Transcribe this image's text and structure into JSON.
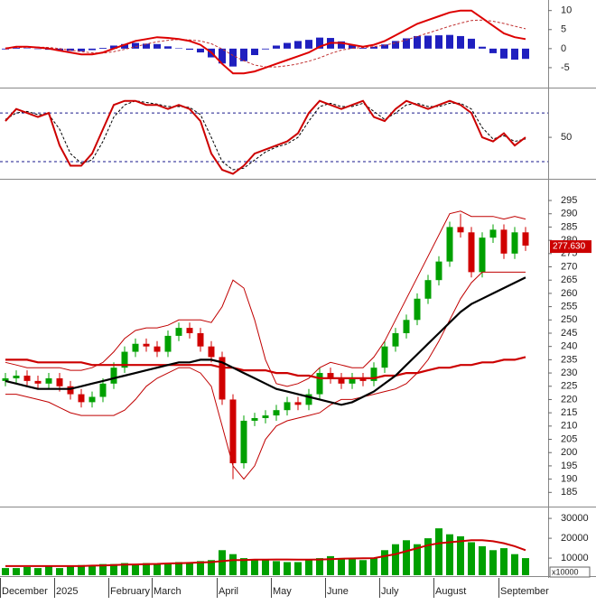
{
  "chart_data": [
    {
      "type": "line",
      "ylim": [
        -10,
        12.3
      ],
      "yticks": [
        10,
        5,
        0,
        -5
      ],
      "series": [
        {
          "style": "histogram",
          "color": "#1f1fbf",
          "values": [
            -0.2,
            0.2,
            0.1,
            -0.1,
            -0.3,
            -0.5,
            -0.6,
            -0.7,
            -0.4,
            0.2,
            0.8,
            1.2,
            1.5,
            1.3,
            1.2,
            0.6,
            0.1,
            -0.3,
            -1,
            -2.3,
            -3.9,
            -4.7,
            -3.3,
            -1.7,
            -0.2,
            0.8,
            1.5,
            2,
            2.3,
            2.9,
            2.8,
            1.9,
            0.9,
            0.2,
            0.5,
            1.1,
            2,
            2.7,
            3.3,
            3.4,
            3.5,
            3.6,
            3.3,
            2.6,
            0.5,
            -1.2,
            -2.6,
            -2.9,
            -2.7
          ]
        },
        {
          "style": "dashed",
          "color": "#c03030",
          "values": [
            0.2,
            0.3,
            0.4,
            0.4,
            0.3,
            0,
            -0.4,
            -0.8,
            -1.1,
            -1.2,
            -0.8,
            -0.2,
            0.5,
            1.2,
            1.8,
            2.2,
            2.4,
            2.3,
            2,
            1.3,
            -0.1,
            -1.8,
            -3.2,
            -4.3,
            -4.8,
            -4.8,
            -4.5,
            -4,
            -3.3,
            -2.4,
            -1.3,
            -0.4,
            0.1,
            0.3,
            0.5,
            0.9,
            1.5,
            2.3,
            3.2,
            4.1,
            5,
            5.9,
            6.7,
            7.4,
            7.5,
            7.2,
            6.6,
            5.9,
            5.2
          ]
        },
        {
          "style": "line",
          "color": "#dd0000",
          "values": [
            0,
            0.5,
            0.5,
            0.3,
            0,
            -0.5,
            -1,
            -1.5,
            -1.5,
            -1,
            0,
            1,
            2,
            2.5,
            3,
            2.8,
            2.5,
            2,
            1,
            -1,
            -4,
            -6.5,
            -6.5,
            -6,
            -5,
            -4,
            -3,
            -2,
            -1,
            0.5,
            1.5,
            1.5,
            1,
            0.5,
            1,
            2,
            3.5,
            5,
            6.5,
            7.5,
            8.5,
            9.5,
            10,
            10,
            8,
            6,
            4,
            3,
            2.5
          ]
        }
      ]
    },
    {
      "type": "line",
      "ylim": [
        0,
        108
      ],
      "yticks": [
        50
      ],
      "hlines": [
        80,
        20
      ],
      "series": [
        {
          "style": "dashed",
          "color": "#000000",
          "values": [
            72,
            80,
            82,
            78,
            78,
            60,
            30,
            18,
            22,
            45,
            75,
            90,
            95,
            93,
            91,
            88,
            88,
            87,
            78,
            50,
            20,
            10,
            12,
            22,
            32,
            38,
            42,
            50,
            70,
            88,
            92,
            88,
            88,
            92,
            82,
            72,
            80,
            90,
            92,
            88,
            88,
            92,
            92,
            85,
            62,
            48,
            52,
            45,
            48
          ]
        },
        {
          "style": "line",
          "color": "#cc0000",
          "values": [
            70,
            85,
            80,
            75,
            80,
            40,
            15,
            15,
            30,
            60,
            90,
            95,
            95,
            90,
            90,
            85,
            90,
            85,
            70,
            30,
            10,
            5,
            15,
            30,
            35,
            40,
            45,
            55,
            80,
            95,
            90,
            85,
            90,
            95,
            75,
            70,
            85,
            95,
            90,
            85,
            90,
            95,
            90,
            80,
            50,
            45,
            55,
            40,
            50
          ]
        }
      ]
    },
    {
      "type": "candlestick",
      "ylim": [
        180,
        302.5
      ],
      "yticks": [
        185,
        190,
        195,
        200,
        205,
        210,
        215,
        220,
        225,
        230,
        235,
        240,
        245,
        250,
        255,
        260,
        265,
        270,
        275,
        280,
        285,
        290,
        295
      ],
      "up_color": "#00a000",
      "down_color": "#d00000",
      "open": [
        227,
        228,
        229,
        227,
        226,
        228,
        225,
        222,
        219,
        221,
        226,
        232,
        238,
        241,
        240,
        238,
        244,
        247,
        245,
        240,
        236,
        220,
        196,
        212,
        213,
        214,
        216,
        219,
        218,
        222,
        230,
        228,
        226,
        228,
        227,
        232,
        240,
        245,
        250,
        258,
        265,
        272,
        285,
        283,
        268,
        281,
        284,
        275,
        283
      ],
      "high": [
        230,
        231,
        231,
        229,
        230,
        230,
        227,
        224,
        223,
        228,
        234,
        240,
        243,
        243,
        242,
        246,
        249,
        249,
        247,
        242,
        238,
        222,
        214,
        215,
        216,
        218,
        221,
        221,
        224,
        232,
        232,
        230,
        230,
        230,
        234,
        242,
        247,
        252,
        260,
        267,
        274,
        287,
        290,
        285,
        283,
        286,
        286,
        285,
        285
      ],
      "low": [
        225,
        226,
        225,
        224,
        224,
        223,
        220,
        217,
        217,
        219,
        224,
        230,
        236,
        238,
        236,
        236,
        242,
        243,
        238,
        234,
        218,
        190,
        194,
        210,
        211,
        212,
        214,
        216,
        216,
        220,
        226,
        224,
        224,
        225,
        225,
        230,
        238,
        243,
        248,
        256,
        263,
        270,
        281,
        266,
        266,
        279,
        273,
        273,
        276
      ],
      "close": [
        228,
        229,
        227,
        226,
        228,
        225,
        222,
        219,
        221,
        226,
        232,
        238,
        241,
        240,
        238,
        244,
        247,
        245,
        240,
        236,
        220,
        196,
        212,
        213,
        214,
        216,
        219,
        218,
        222,
        230,
        228,
        226,
        228,
        227,
        232,
        240,
        245,
        250,
        258,
        265,
        272,
        285,
        283,
        268,
        281,
        284,
        275,
        283,
        278
      ],
      "series": [
        {
          "style": "thin",
          "color": "#c00000",
          "values": [
            234,
            233,
            232,
            232,
            232,
            232,
            231,
            231,
            232,
            234,
            238,
            243,
            246,
            247,
            247,
            248,
            250,
            250,
            250,
            249,
            255,
            265,
            262,
            250,
            235,
            226,
            225,
            226,
            228,
            232,
            234,
            233,
            232,
            232,
            236,
            242,
            250,
            258,
            266,
            274,
            282,
            290,
            291,
            289,
            289,
            289,
            288,
            289,
            288
          ]
        },
        {
          "style": "thin",
          "color": "#c00000",
          "values": [
            222,
            222,
            221,
            220,
            219,
            217,
            215,
            214,
            214,
            214,
            214,
            216,
            220,
            225,
            228,
            230,
            232,
            232,
            230,
            225,
            210,
            195,
            190,
            195,
            205,
            210,
            212,
            213,
            214,
            215,
            218,
            220,
            220,
            221,
            222,
            223,
            224,
            226,
            230,
            235,
            242,
            250,
            258,
            264,
            268,
            268,
            268,
            268,
            268
          ]
        },
        {
          "style": "thick",
          "color": "#cc0000",
          "values": [
            235,
            235,
            235,
            234,
            234,
            234,
            234,
            234,
            233,
            233,
            233,
            233,
            233,
            233,
            233,
            233,
            233,
            233,
            233,
            233,
            232,
            232,
            231,
            231,
            231,
            230,
            230,
            229,
            229,
            228,
            228,
            228,
            228,
            228,
            228,
            229,
            229,
            230,
            230,
            231,
            232,
            232,
            233,
            233,
            234,
            234,
            235,
            235,
            236
          ]
        },
        {
          "style": "thick",
          "color": "#000000",
          "values": [
            227,
            226,
            225,
            224,
            224,
            224,
            224,
            225,
            226,
            227,
            228,
            229,
            230,
            231,
            232,
            233,
            234,
            234,
            235,
            235,
            234,
            232,
            230,
            228,
            226,
            224,
            223,
            222,
            221,
            220,
            219,
            218,
            219,
            221,
            223,
            226,
            229,
            233,
            237,
            241,
            245,
            249,
            253,
            256,
            258,
            260,
            262,
            264,
            266
          ]
        }
      ],
      "price_tag": {
        "value": 277.63,
        "label": "277.630"
      }
    },
    {
      "type": "bar",
      "ylim": [
        1400,
        35500
      ],
      "yticks": [
        {
          "value": 30000,
          "label": "30000"
        },
        {
          "value": 20000,
          "label": "20000"
        },
        {
          "value": 10000,
          "label": "10000"
        }
      ],
      "unit_label": "x10000",
      "color": "#00a000",
      "categories": [
        "December",
        null,
        null,
        null,
        null,
        "2025",
        null,
        null,
        null,
        null,
        "February",
        null,
        null,
        null,
        "March",
        null,
        null,
        null,
        null,
        null,
        "April",
        null,
        null,
        null,
        null,
        "May",
        null,
        null,
        null,
        null,
        "June",
        null,
        null,
        null,
        null,
        "July",
        null,
        null,
        null,
        null,
        "August",
        null,
        null,
        null,
        null,
        null,
        "September",
        null,
        null
      ],
      "values": [
        5000,
        5000,
        5500,
        5000,
        6000,
        5000,
        6000,
        6500,
        6000,
        7000,
        7000,
        7500,
        7000,
        7500,
        7000,
        7500,
        8000,
        8000,
        8500,
        9000,
        14000,
        12000,
        10000,
        9000,
        9000,
        8500,
        8000,
        8000,
        9000,
        10000,
        11000,
        10000,
        9500,
        9000,
        10000,
        14000,
        17000,
        19000,
        17000,
        20000,
        25000,
        22000,
        21000,
        18000,
        16000,
        14000,
        15000,
        12000,
        10000
      ],
      "series": [
        {
          "style": "line",
          "color": "#cc0000",
          "values": [
            6000,
            6000,
            6000,
            6000,
            6000,
            6000,
            6000,
            6000,
            6200,
            6300,
            6500,
            6700,
            6800,
            7000,
            7100,
            7300,
            7400,
            7600,
            7800,
            8000,
            8500,
            9000,
            9000,
            9200,
            9200,
            9300,
            9300,
            9200,
            9200,
            9300,
            9500,
            9700,
            9800,
            9900,
            10000,
            11000,
            12000,
            13500,
            15000,
            16500,
            17500,
            18000,
            18500,
            19000,
            19000,
            18500,
            17500,
            16000,
            14000
          ]
        }
      ]
    }
  ]
}
